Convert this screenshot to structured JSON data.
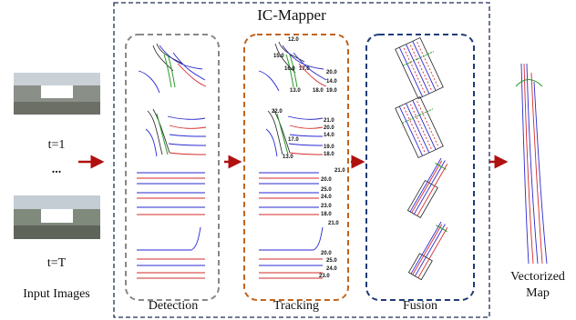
{
  "title": "IC-Mapper",
  "input": {
    "first_frame": "t=1",
    "ellipsis": "...",
    "last_frame": "t=T",
    "label": "Input Images"
  },
  "stages": [
    "Detection",
    "Tracking",
    "Fusion"
  ],
  "tracking_panels": [
    [
      "12.0",
      "15.0",
      "16.0",
      "17.0",
      "20.0",
      "14.0",
      "13.0",
      "18.0",
      "19.0"
    ],
    [
      "22.0",
      "21.0",
      "20.0",
      "14.0",
      "17.0",
      "19.0",
      "13.0",
      "18.0"
    ],
    [
      "21.0",
      "20.0",
      "25.0",
      "24.0",
      "23.0",
      "18.0"
    ],
    [
      "21.0",
      "20.0",
      "25.0",
      "24.0",
      "23.0"
    ]
  ],
  "output": {
    "line1": "Vectorized",
    "line2": "Map"
  }
}
